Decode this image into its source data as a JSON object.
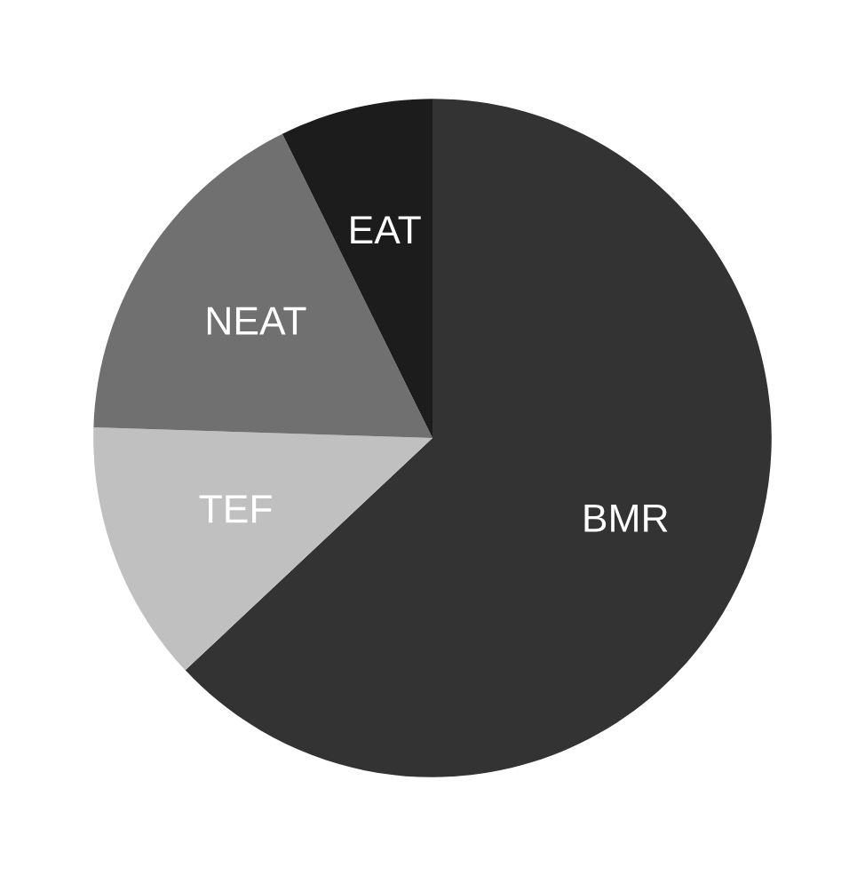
{
  "chart_data": {
    "type": "pie",
    "categories": [
      "BMR",
      "TEF",
      "NEAT",
      "EAT"
    ],
    "values": [
      63,
      12.5,
      17.2,
      7.3
    ],
    "colors": [
      "#333333",
      "#c0c0c0",
      "#707070",
      "#1c1c1c"
    ]
  }
}
